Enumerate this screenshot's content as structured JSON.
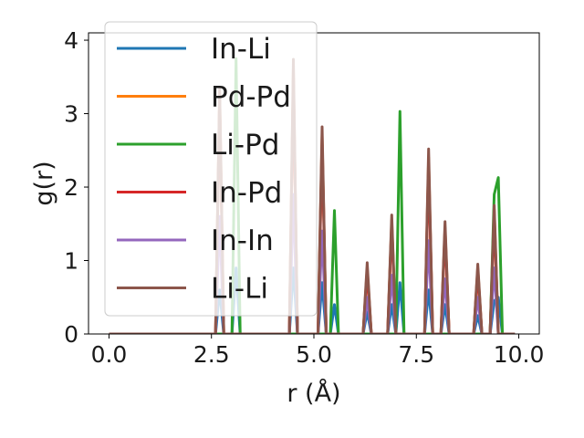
{
  "chart_data": {
    "type": "line",
    "xlabel": "r (Å)",
    "ylabel": "g(r)",
    "xlim": [
      -0.5,
      10.5
    ],
    "ylim": [
      0,
      4.1
    ],
    "xticks": [
      0.0,
      2.5,
      5.0,
      7.5,
      10.0
    ],
    "xtick_labels": [
      "0.0",
      "2.5",
      "5.0",
      "7.5",
      "10.0"
    ],
    "yticks": [
      0,
      1,
      2,
      3,
      4
    ],
    "ytick_labels": [
      "0",
      "1",
      "2",
      "3",
      "4"
    ],
    "grid": false,
    "legend_position": "upper-left",
    "series": [
      {
        "name": "In-Li",
        "color": "#1f77b4",
        "x": [
          0,
          2.6,
          2.7,
          2.8,
          3.0,
          3.1,
          3.2,
          4.4,
          4.5,
          4.6,
          5.1,
          5.2,
          5.3,
          5.4,
          5.5,
          5.6,
          6.2,
          6.3,
          6.4,
          6.8,
          6.9,
          7.0,
          7.1,
          7.2,
          7.7,
          7.8,
          7.9,
          8.1,
          8.2,
          8.3,
          8.9,
          9.0,
          9.1,
          9.3,
          9.4,
          9.5,
          9.6,
          9.9
        ],
        "y": [
          0,
          0,
          0.6,
          0,
          0,
          0.9,
          0,
          0,
          0.9,
          0,
          0,
          0.7,
          0,
          0,
          0.4,
          0,
          0,
          0.3,
          0,
          0,
          0.4,
          0,
          0.7,
          0,
          0,
          0.6,
          0,
          0,
          0.4,
          0,
          0,
          0.25,
          0,
          0,
          0.45,
          0.5,
          0,
          0
        ]
      },
      {
        "name": "Pd-Pd",
        "color": "#ff7f0e",
        "x": [
          0,
          2.6,
          2.7,
          2.8,
          4.4,
          4.5,
          4.6,
          5.1,
          5.2,
          5.3,
          6.2,
          6.3,
          6.4,
          6.8,
          6.9,
          7.0,
          7.7,
          7.8,
          7.9,
          8.1,
          8.2,
          8.3,
          8.9,
          9.0,
          9.1,
          9.3,
          9.4,
          9.5,
          9.9
        ],
        "y": [
          0,
          0,
          3.3,
          0,
          0,
          3.6,
          0,
          0,
          2.7,
          0,
          0,
          0.9,
          0,
          0,
          1.55,
          0,
          0,
          2.4,
          0,
          0,
          1.45,
          0,
          0,
          0.9,
          0,
          0,
          1.7,
          0,
          0
        ]
      },
      {
        "name": "Li-Pd",
        "color": "#2ca02c",
        "x": [
          0,
          3.0,
          3.1,
          3.2,
          5.4,
          5.5,
          5.6,
          7.0,
          7.1,
          7.2,
          9.3,
          9.4,
          9.5,
          9.6,
          9.9
        ],
        "y": [
          0,
          0,
          3.75,
          0,
          0,
          1.68,
          0,
          0,
          3.03,
          0,
          0,
          1.9,
          2.13,
          0,
          0
        ]
      },
      {
        "name": "In-Pd",
        "color": "#d62728",
        "x": [
          0,
          2.6,
          2.7,
          2.8,
          4.4,
          4.5,
          4.6,
          5.1,
          5.2,
          5.3,
          6.2,
          6.3,
          6.4,
          6.8,
          6.9,
          7.0,
          7.7,
          7.8,
          7.9,
          8.1,
          8.2,
          8.3,
          8.9,
          9.0,
          9.1,
          9.3,
          9.4,
          9.5,
          9.9
        ],
        "y": [
          0,
          0,
          3.2,
          0,
          0,
          3.5,
          0,
          0,
          2.6,
          0,
          0,
          0.85,
          0,
          0,
          1.5,
          0,
          0,
          2.3,
          0,
          0,
          1.4,
          0,
          0,
          0.85,
          0,
          0,
          1.6,
          0,
          0
        ]
      },
      {
        "name": "In-In",
        "color": "#9467bd",
        "x": [
          0,
          2.6,
          2.7,
          2.8,
          4.4,
          4.5,
          4.6,
          5.1,
          5.2,
          5.3,
          6.2,
          6.3,
          6.4,
          6.8,
          6.9,
          7.0,
          7.7,
          7.8,
          7.9,
          8.1,
          8.2,
          8.3,
          8.9,
          9.0,
          9.1,
          9.3,
          9.4,
          9.5,
          9.9
        ],
        "y": [
          0,
          0,
          1.6,
          0,
          0,
          1.9,
          0,
          0,
          1.4,
          0,
          0,
          0.5,
          0,
          0,
          0.8,
          0,
          0,
          1.27,
          0,
          0,
          0.75,
          0,
          0,
          0.5,
          0,
          0,
          0.9,
          0,
          0
        ]
      },
      {
        "name": "Li-Li",
        "color": "#8c564b",
        "x": [
          0,
          2.6,
          2.7,
          2.8,
          4.4,
          4.5,
          4.6,
          5.1,
          5.2,
          5.3,
          6.2,
          6.3,
          6.4,
          6.8,
          6.9,
          7.0,
          7.7,
          7.8,
          7.9,
          8.1,
          8.2,
          8.3,
          8.9,
          9.0,
          9.1,
          9.3,
          9.4,
          9.5,
          9.9
        ],
        "y": [
          0,
          0,
          3.34,
          0,
          0,
          3.74,
          0,
          0,
          2.82,
          0,
          0,
          0.97,
          0,
          0,
          1.62,
          0,
          0,
          2.52,
          0,
          0,
          1.53,
          0,
          0,
          0.95,
          0,
          0,
          1.75,
          0,
          0
        ]
      }
    ]
  }
}
